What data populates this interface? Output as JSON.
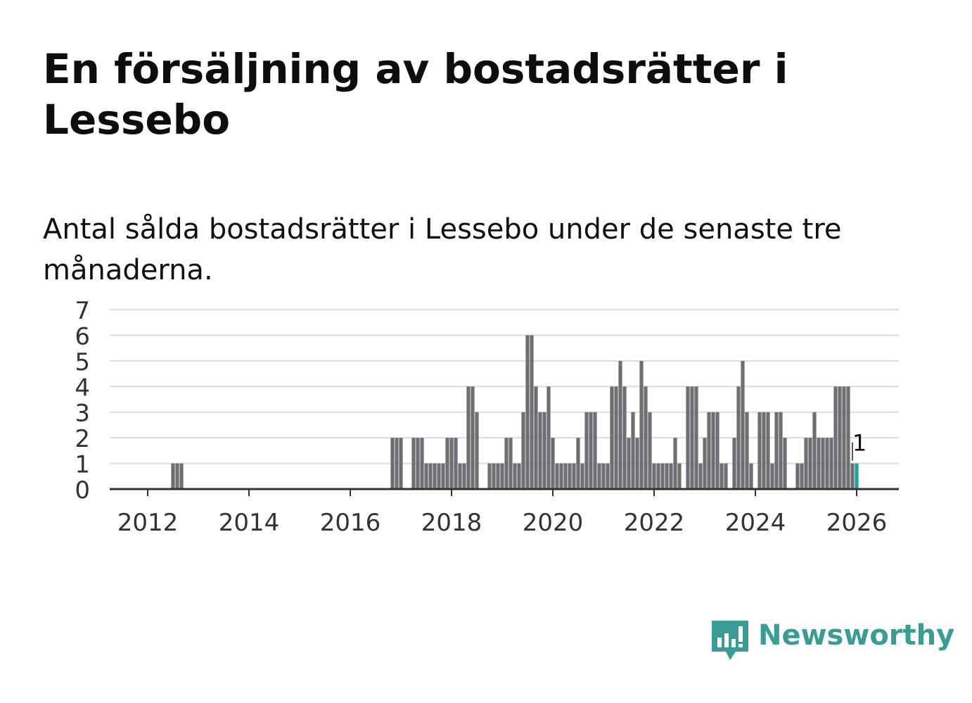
{
  "title": "En försäljning av bostadsrätter i Lessebo",
  "subtitle": "Antal sålda bostadsrätter i Lessebo under de senaste tre månaderna.",
  "brand": {
    "name": "Newsworthy",
    "color": "#3a9c95"
  },
  "chart_data": {
    "type": "bar",
    "x_start": "2012-01",
    "x_end": "2026-09",
    "x_tick_labels": [
      "2012",
      "2014",
      "2016",
      "2018",
      "2020",
      "2022",
      "2024",
      "2026"
    ],
    "y_tick_labels": [
      "0",
      "1",
      "2",
      "3",
      "4",
      "5",
      "6",
      "7"
    ],
    "ylim": [
      0,
      7
    ],
    "grid": true,
    "bar_color": "#6e6e73",
    "highlight_color": "#1aa39a",
    "annotation": {
      "label": "1",
      "date": "2026-01",
      "value": 1
    },
    "series": [
      {
        "name": "Antal sålda bostadsrätter",
        "points": [
          {
            "date": "2012-07",
            "value": 1
          },
          {
            "date": "2012-08",
            "value": 1
          },
          {
            "date": "2012-09",
            "value": 1
          },
          {
            "date": "2016-11",
            "value": 2
          },
          {
            "date": "2016-12",
            "value": 2
          },
          {
            "date": "2017-01",
            "value": 2
          },
          {
            "date": "2017-04",
            "value": 2
          },
          {
            "date": "2017-05",
            "value": 2
          },
          {
            "date": "2017-06",
            "value": 2
          },
          {
            "date": "2017-07",
            "value": 1
          },
          {
            "date": "2017-08",
            "value": 1
          },
          {
            "date": "2017-09",
            "value": 1
          },
          {
            "date": "2017-10",
            "value": 1
          },
          {
            "date": "2017-11",
            "value": 1
          },
          {
            "date": "2017-12",
            "value": 2
          },
          {
            "date": "2018-01",
            "value": 2
          },
          {
            "date": "2018-02",
            "value": 2
          },
          {
            "date": "2018-03",
            "value": 1
          },
          {
            "date": "2018-04",
            "value": 1
          },
          {
            "date": "2018-05",
            "value": 4
          },
          {
            "date": "2018-06",
            "value": 4
          },
          {
            "date": "2018-07",
            "value": 3
          },
          {
            "date": "2018-10",
            "value": 1
          },
          {
            "date": "2018-11",
            "value": 1
          },
          {
            "date": "2018-12",
            "value": 1
          },
          {
            "date": "2019-01",
            "value": 1
          },
          {
            "date": "2019-02",
            "value": 2
          },
          {
            "date": "2019-03",
            "value": 2
          },
          {
            "date": "2019-04",
            "value": 1
          },
          {
            "date": "2019-05",
            "value": 1
          },
          {
            "date": "2019-06",
            "value": 3
          },
          {
            "date": "2019-07",
            "value": 6
          },
          {
            "date": "2019-08",
            "value": 6
          },
          {
            "date": "2019-09",
            "value": 4
          },
          {
            "date": "2019-10",
            "value": 3
          },
          {
            "date": "2019-11",
            "value": 3
          },
          {
            "date": "2019-12",
            "value": 4
          },
          {
            "date": "2020-01",
            "value": 2
          },
          {
            "date": "2020-02",
            "value": 1
          },
          {
            "date": "2020-03",
            "value": 1
          },
          {
            "date": "2020-04",
            "value": 1
          },
          {
            "date": "2020-05",
            "value": 1
          },
          {
            "date": "2020-06",
            "value": 1
          },
          {
            "date": "2020-07",
            "value": 2
          },
          {
            "date": "2020-08",
            "value": 1
          },
          {
            "date": "2020-09",
            "value": 3
          },
          {
            "date": "2020-10",
            "value": 3
          },
          {
            "date": "2020-11",
            "value": 3
          },
          {
            "date": "2020-12",
            "value": 1
          },
          {
            "date": "2021-01",
            "value": 1
          },
          {
            "date": "2021-02",
            "value": 1
          },
          {
            "date": "2021-03",
            "value": 4
          },
          {
            "date": "2021-04",
            "value": 4
          },
          {
            "date": "2021-05",
            "value": 5
          },
          {
            "date": "2021-06",
            "value": 4
          },
          {
            "date": "2021-07",
            "value": 2
          },
          {
            "date": "2021-08",
            "value": 3
          },
          {
            "date": "2021-09",
            "value": 2
          },
          {
            "date": "2021-10",
            "value": 5
          },
          {
            "date": "2021-11",
            "value": 4
          },
          {
            "date": "2021-12",
            "value": 3
          },
          {
            "date": "2022-01",
            "value": 1
          },
          {
            "date": "2022-02",
            "value": 1
          },
          {
            "date": "2022-03",
            "value": 1
          },
          {
            "date": "2022-04",
            "value": 1
          },
          {
            "date": "2022-05",
            "value": 1
          },
          {
            "date": "2022-06",
            "value": 2
          },
          {
            "date": "2022-07",
            "value": 1
          },
          {
            "date": "2022-09",
            "value": 4
          },
          {
            "date": "2022-10",
            "value": 4
          },
          {
            "date": "2022-11",
            "value": 4
          },
          {
            "date": "2022-12",
            "value": 1
          },
          {
            "date": "2023-01",
            "value": 2
          },
          {
            "date": "2023-02",
            "value": 3
          },
          {
            "date": "2023-03",
            "value": 3
          },
          {
            "date": "2023-04",
            "value": 3
          },
          {
            "date": "2023-05",
            "value": 1
          },
          {
            "date": "2023-06",
            "value": 1
          },
          {
            "date": "2023-08",
            "value": 2
          },
          {
            "date": "2023-09",
            "value": 4
          },
          {
            "date": "2023-10",
            "value": 5
          },
          {
            "date": "2023-11",
            "value": 3
          },
          {
            "date": "2023-12",
            "value": 1
          },
          {
            "date": "2024-02",
            "value": 3
          },
          {
            "date": "2024-03",
            "value": 3
          },
          {
            "date": "2024-04",
            "value": 3
          },
          {
            "date": "2024-05",
            "value": 1
          },
          {
            "date": "2024-06",
            "value": 3
          },
          {
            "date": "2024-07",
            "value": 3
          },
          {
            "date": "2024-08",
            "value": 2
          },
          {
            "date": "2024-11",
            "value": 1
          },
          {
            "date": "2024-12",
            "value": 1
          },
          {
            "date": "2025-01",
            "value": 2
          },
          {
            "date": "2025-02",
            "value": 2
          },
          {
            "date": "2025-03",
            "value": 3
          },
          {
            "date": "2025-04",
            "value": 2
          },
          {
            "date": "2025-05",
            "value": 2
          },
          {
            "date": "2025-06",
            "value": 2
          },
          {
            "date": "2025-07",
            "value": 2
          },
          {
            "date": "2025-08",
            "value": 4
          },
          {
            "date": "2025-09",
            "value": 4
          },
          {
            "date": "2025-10",
            "value": 4
          },
          {
            "date": "2025-11",
            "value": 4
          },
          {
            "date": "2025-12",
            "value": 1
          },
          {
            "date": "2026-01",
            "value": 1
          }
        ]
      }
    ]
  }
}
